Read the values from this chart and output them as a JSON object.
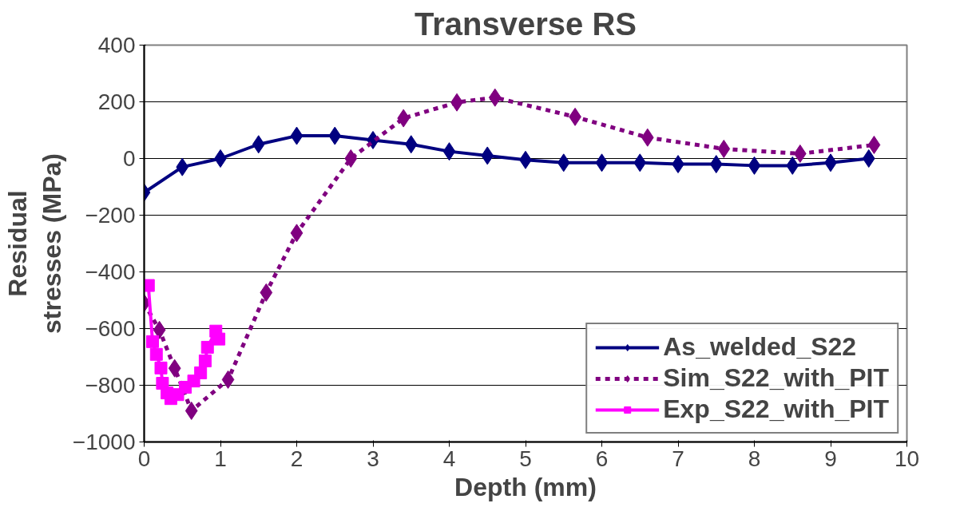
{
  "chart_data": {
    "type": "line",
    "title": "Transverse RS",
    "xlabel": "Depth (mm)",
    "ylabel": "Residual\nstresses (MPa)",
    "xlim": [
      0,
      10
    ],
    "xticks": [
      0,
      1,
      2,
      3,
      4,
      5,
      6,
      7,
      8,
      9,
      10
    ],
    "ylim": [
      -1000,
      400
    ],
    "yticks": [
      -1000,
      -800,
      -600,
      -400,
      -200,
      0,
      200,
      400
    ],
    "grid": "y",
    "legend": "bottom right",
    "series": [
      {
        "name": "As_welded_S22",
        "color": "#000080",
        "marker": "diamond",
        "line_style": "solid",
        "x": [
          0,
          0.5,
          1,
          1.5,
          2,
          2.5,
          3,
          3.5,
          4,
          4.5,
          5,
          5.5,
          6,
          6.5,
          7,
          7.5,
          8,
          8.5,
          9,
          9.5
        ],
        "values": [
          -120,
          -30,
          0,
          50,
          80,
          80,
          65,
          50,
          25,
          10,
          -5,
          -15,
          -15,
          -15,
          -20,
          -20,
          -25,
          -25,
          -15,
          0
        ]
      },
      {
        "name": "Sim_S22_with_PIT",
        "color": "#800080",
        "marker": "diamond",
        "line_style": "dashed",
        "x": [
          0,
          0.2,
          0.4,
          0.62,
          1.1,
          1.6,
          2.0,
          2.71,
          3.4,
          4.1,
          4.6,
          5.65,
          6.6,
          7.6,
          8.6,
          9.57
        ],
        "values": [
          -510,
          -605,
          -740,
          -890,
          -780,
          -473,
          -263,
          0,
          142,
          198,
          215,
          147,
          74,
          34,
          17,
          48
        ]
      },
      {
        "name": "Exp_S22_with_PIT",
        "color": "#ff00ff",
        "marker": "square",
        "line_style": "solid",
        "x": [
          0.055,
          0.11,
          0.16,
          0.22,
          0.24,
          0.3,
          0.35,
          0.44,
          0.54,
          0.65,
          0.74,
          0.8,
          0.83,
          0.94,
          0.98
        ],
        "values": [
          -448,
          -646,
          -691,
          -739,
          -793,
          -827,
          -847,
          -833,
          -807,
          -785,
          -756,
          -714,
          -666,
          -609,
          -637
        ]
      }
    ]
  }
}
